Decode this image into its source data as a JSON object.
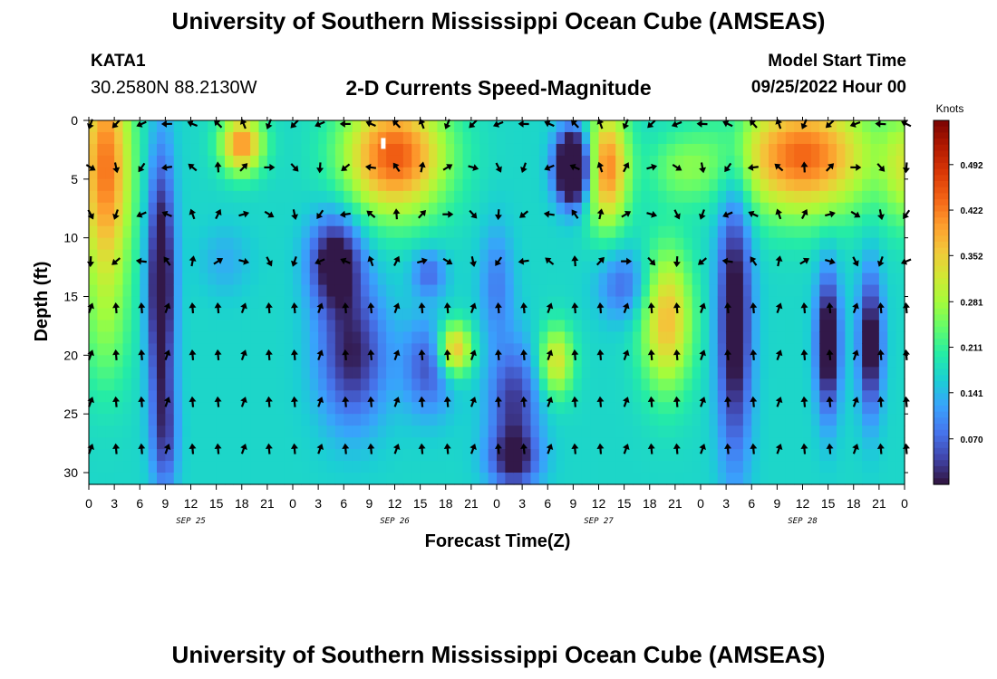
{
  "header": {
    "title": "University of Southern Mississippi Ocean Cube (AMSEAS)",
    "station": "KATA1",
    "coordinates": "30.2580N  88.2130W",
    "subtitle": "2-D Currents Speed-Magnitude",
    "model_start_label": "Model Start Time",
    "model_start_value": "09/25/2022 Hour 00"
  },
  "footer": {
    "title": "University of Southern Mississippi Ocean Cube (AMSEAS)"
  },
  "chart_data": {
    "type": "heatmap",
    "title": "2-D Currents Speed-Magnitude",
    "xlabel": "Forecast Time(Z)",
    "ylabel": "Depth (ft)",
    "xlim": [
      0,
      96
    ],
    "ylim": [
      31,
      0
    ],
    "x_ticks": [
      0,
      3,
      6,
      9,
      12,
      15,
      18,
      21,
      24,
      27,
      30,
      33,
      36,
      39,
      42,
      45,
      48,
      51,
      54,
      57,
      60,
      63,
      66,
      69,
      72,
      75,
      78,
      81,
      84,
      87,
      90,
      93,
      96
    ],
    "x_tick_labels": [
      "0",
      "3",
      "6",
      "9",
      "12",
      "15",
      "18",
      "21",
      "0",
      "3",
      "6",
      "9",
      "12",
      "15",
      "18",
      "21",
      "0",
      "3",
      "6",
      "9",
      "12",
      "15",
      "18",
      "21",
      "0",
      "3",
      "6",
      "9",
      "12",
      "15",
      "18",
      "21",
      "0"
    ],
    "day_labels": [
      {
        "hour": 12,
        "label": "SEP 25"
      },
      {
        "hour": 36,
        "label": "SEP 26"
      },
      {
        "hour": 60,
        "label": "SEP 27"
      },
      {
        "hour": 84,
        "label": "SEP 28"
      }
    ],
    "y_ticks": [
      0,
      5,
      10,
      15,
      20,
      25,
      30
    ],
    "y_tick_labels": [
      "0",
      "5",
      "10",
      "15",
      "20",
      "25",
      "30"
    ],
    "colorbar": {
      "units": "Knots",
      "range": [
        0.0,
        0.56
      ],
      "ticks": [
        0.07,
        0.141,
        0.211,
        0.281,
        0.352,
        0.422,
        0.492
      ],
      "tick_labels": [
        "0.070",
        "0.141",
        "0.211",
        "0.281",
        "0.352",
        "0.422",
        "0.492"
      ],
      "colors": [
        "#30123b",
        "#4145ab",
        "#4675ed",
        "#39a2fc",
        "#1bcfd4",
        "#24eca6",
        "#61fc6c",
        "#a4fc3b",
        "#d1e834",
        "#f3c63a",
        "#fe9b2d",
        "#f36315",
        "#d93806",
        "#b11901",
        "#7a0402"
      ]
    },
    "vector_depths": [
      0,
      4,
      8,
      12,
      16,
      20,
      24,
      28
    ],
    "vector_hours": [
      0,
      3,
      6,
      9,
      12,
      15,
      18,
      21,
      24,
      27,
      30,
      33,
      36,
      39,
      42,
      45,
      48,
      51,
      54,
      57,
      60,
      63,
      66,
      69,
      72,
      75,
      78,
      81,
      84,
      87,
      90,
      93,
      96
    ],
    "speed_grid_note": "speed field (knots) over hours 0-96 by depth 0-31 ft"
  }
}
